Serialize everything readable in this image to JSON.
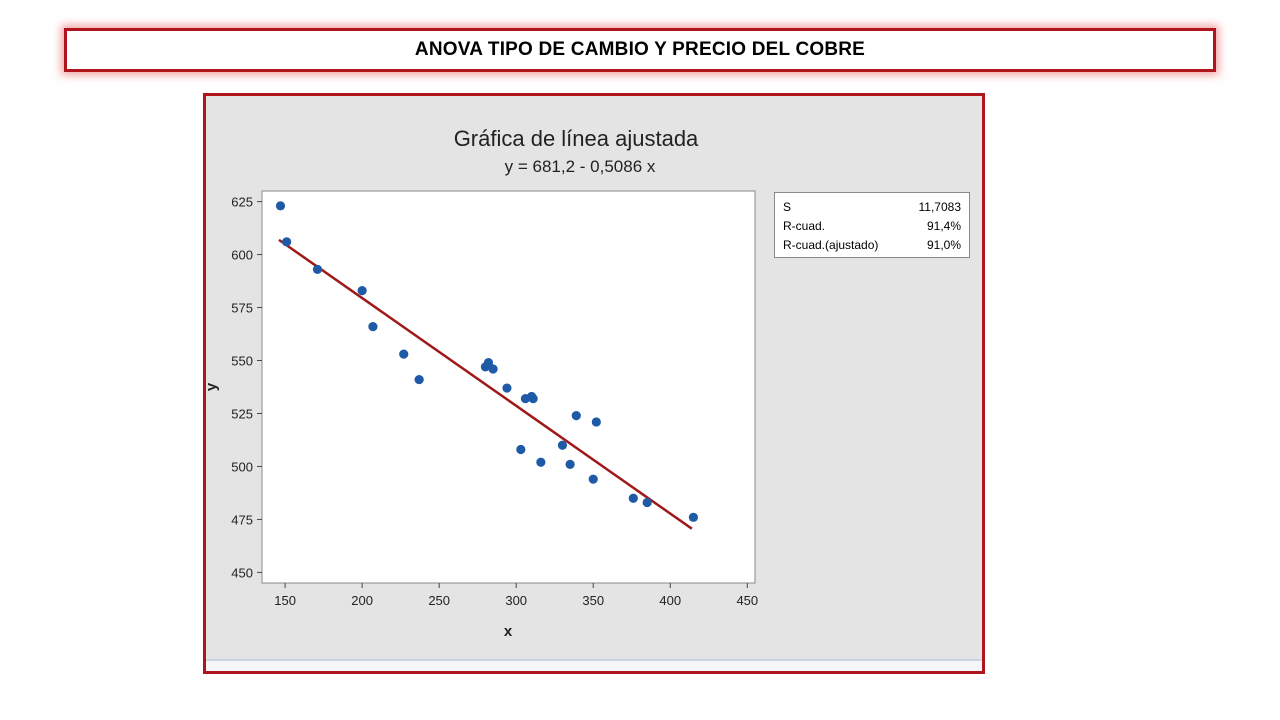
{
  "slide": {
    "title": "ANOVA TIPO DE CAMBIO Y PRECIO  DEL COBRE"
  },
  "colors": {
    "frame_border": "#b0141c",
    "points": "#1f5aa6",
    "fit_line": "#a01818",
    "chart_bg": "#e4e4e4"
  },
  "chart_data": {
    "type": "scatter",
    "title": "Gráfica de línea ajustada",
    "subtitle": "y = 681,2 - 0,5086 x",
    "xlabel": "x",
    "ylabel": "y",
    "xlim": [
      135,
      455
    ],
    "ylim": [
      445,
      630
    ],
    "xticks": [
      150,
      200,
      250,
      300,
      350,
      400,
      450
    ],
    "yticks": [
      450,
      475,
      500,
      525,
      550,
      575,
      600,
      625
    ],
    "grid": false,
    "points": [
      {
        "x": 147,
        "y": 623
      },
      {
        "x": 151,
        "y": 606
      },
      {
        "x": 171,
        "y": 593
      },
      {
        "x": 200,
        "y": 583
      },
      {
        "x": 207,
        "y": 566
      },
      {
        "x": 227,
        "y": 553
      },
      {
        "x": 237,
        "y": 541
      },
      {
        "x": 280,
        "y": 547
      },
      {
        "x": 282,
        "y": 549
      },
      {
        "x": 285,
        "y": 546
      },
      {
        "x": 294,
        "y": 537
      },
      {
        "x": 303,
        "y": 508
      },
      {
        "x": 306,
        "y": 532
      },
      {
        "x": 310,
        "y": 533
      },
      {
        "x": 311,
        "y": 532
      },
      {
        "x": 316,
        "y": 502
      },
      {
        "x": 330,
        "y": 510
      },
      {
        "x": 335,
        "y": 501
      },
      {
        "x": 339,
        "y": 524
      },
      {
        "x": 350,
        "y": 494
      },
      {
        "x": 352,
        "y": 521
      },
      {
        "x": 376,
        "y": 485
      },
      {
        "x": 385,
        "y": 483
      },
      {
        "x": 415,
        "y": 476
      }
    ],
    "fit_line": {
      "intercept": 681.2,
      "slope": -0.5086,
      "x_range": [
        146,
        414
      ]
    }
  },
  "stats": [
    {
      "label": "S",
      "value": "11,7083"
    },
    {
      "label": "R-cuad.",
      "value": "91,4%"
    },
    {
      "label": "R-cuad.(ajustado)",
      "value": "91,0%"
    }
  ]
}
